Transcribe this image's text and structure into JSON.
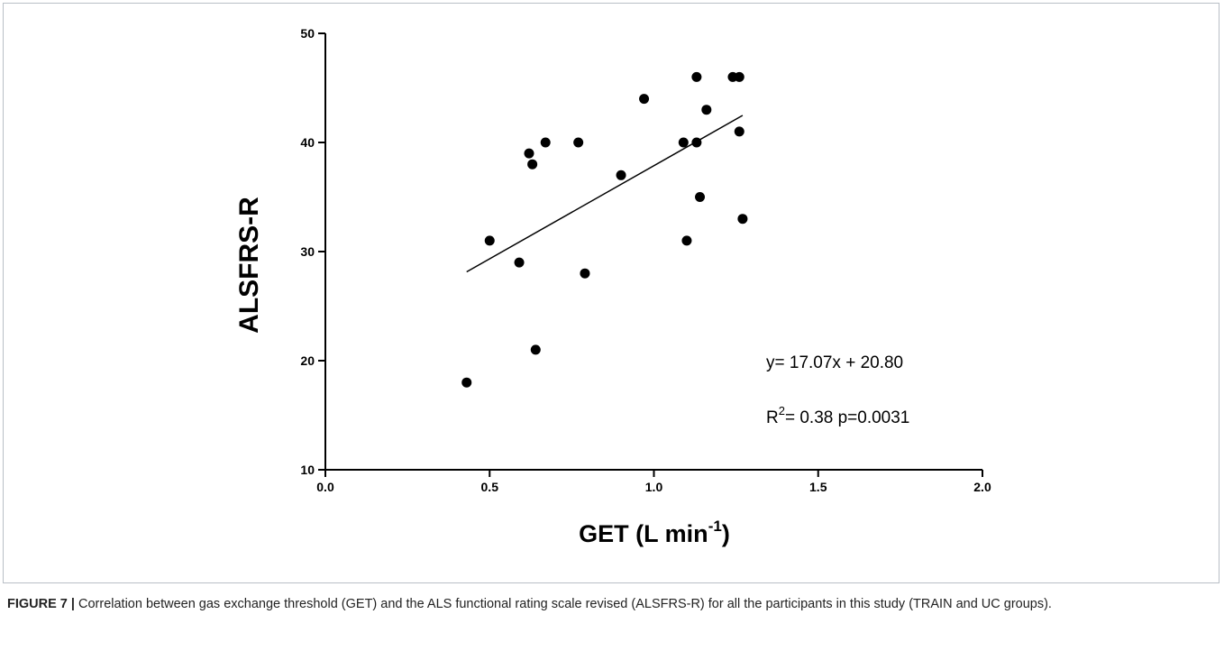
{
  "caption": {
    "label": "FIGURE 7 |",
    "text": " Correlation between gas exchange threshold (GET) and the ALS functional rating scale revised (ALSFRS-R) for all the participants in this study (TRAIN and UC groups)."
  },
  "chart_data": {
    "type": "scatter",
    "xlabel": {
      "main": "GET (L min",
      "sup": "-1",
      "close": ")"
    },
    "ylabel": "ALSFRS-R",
    "xlim": [
      0.0,
      2.0
    ],
    "ylim": [
      10,
      50
    ],
    "x_ticks": [
      "0.0",
      "0.5",
      "1.0",
      "1.5",
      "2.0"
    ],
    "y_ticks": [
      "10",
      "20",
      "30",
      "40",
      "50"
    ],
    "grid": false,
    "points": [
      [
        0.43,
        18
      ],
      [
        0.5,
        31
      ],
      [
        0.59,
        29
      ],
      [
        0.62,
        39
      ],
      [
        0.63,
        38
      ],
      [
        0.64,
        21
      ],
      [
        0.67,
        40
      ],
      [
        0.77,
        40
      ],
      [
        0.79,
        28
      ],
      [
        0.9,
        37
      ],
      [
        0.97,
        44
      ],
      [
        1.09,
        40
      ],
      [
        1.1,
        31
      ],
      [
        1.13,
        46
      ],
      [
        1.13,
        40
      ],
      [
        1.14,
        35
      ],
      [
        1.16,
        43
      ],
      [
        1.24,
        46
      ],
      [
        1.26,
        46
      ],
      [
        1.26,
        41
      ],
      [
        1.27,
        33
      ]
    ],
    "fit_line": {
      "slope": 17.07,
      "intercept": 20.8,
      "x_range": [
        0.43,
        1.27
      ]
    },
    "annotations": {
      "equation": "y= 17.07x + 20.80",
      "r2_prefix": "R",
      "r2_sup": "2",
      "r2_rest": "=  0.38 p=0.0031"
    }
  }
}
